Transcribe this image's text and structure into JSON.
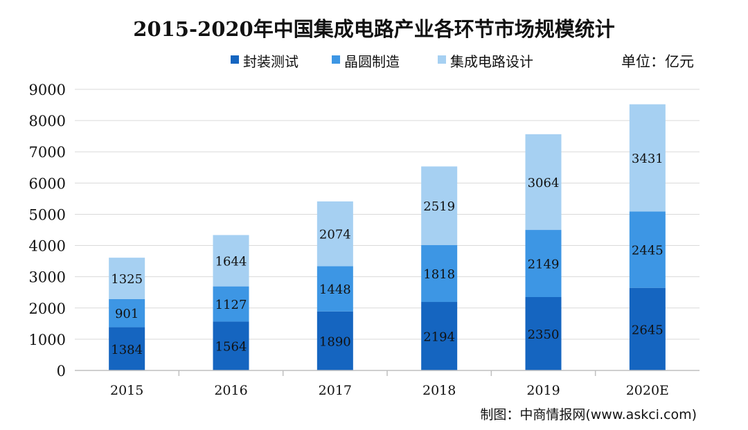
{
  "chart_data": {
    "type": "bar",
    "stacked": true,
    "title": "2015-2020年中国集成电路产业各环节市场规模统计",
    "unit": "单位：亿元",
    "categories": [
      "2015",
      "2016",
      "2017",
      "2018",
      "2019",
      "2020E"
    ],
    "series": [
      {
        "name": "封装测试",
        "values": [
          1384,
          1564,
          1890,
          2194,
          2350,
          2645
        ],
        "color": "#1565c0"
      },
      {
        "name": "晶圆制造",
        "values": [
          901,
          1127,
          1448,
          1818,
          2149,
          2445
        ],
        "color": "#3d96e4"
      },
      {
        "name": "集成电路设计",
        "values": [
          1325,
          1644,
          2074,
          2519,
          3064,
          3431
        ],
        "color": "#a6d0f2"
      }
    ],
    "ylim": [
      0,
      9000
    ],
    "yticks": [
      0,
      1000,
      2000,
      3000,
      4000,
      5000,
      6000,
      7000,
      8000,
      9000
    ],
    "grid": true,
    "legend_position": "top-center",
    "source": "制图：中商情报网(www.askci.com)"
  }
}
